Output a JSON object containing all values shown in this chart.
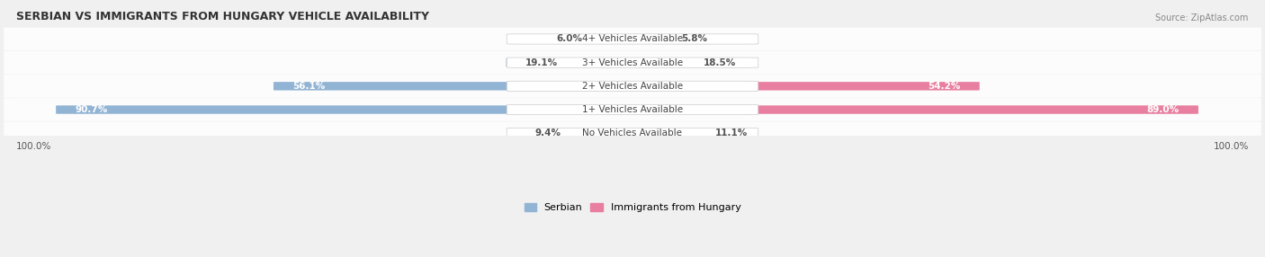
{
  "title": "SERBIAN VS IMMIGRANTS FROM HUNGARY VEHICLE AVAILABILITY",
  "source": "Source: ZipAtlas.com",
  "categories": [
    "No Vehicles Available",
    "1+ Vehicles Available",
    "2+ Vehicles Available",
    "3+ Vehicles Available",
    "4+ Vehicles Available"
  ],
  "serbian_values": [
    9.4,
    90.7,
    56.1,
    19.1,
    6.0
  ],
  "hungary_values": [
    11.1,
    89.0,
    54.2,
    18.5,
    5.8
  ],
  "serbian_color": "#92b4d4",
  "hungary_color": "#e87fa0",
  "serbian_label": "Serbian",
  "hungary_label": "Immigrants from Hungary",
  "max_value": 100.0,
  "bg_color": "#f0f0f0",
  "row_bg": "#e8e8e8",
  "label_color": "#555555",
  "title_color": "#333333",
  "footer_label": "100.0%"
}
